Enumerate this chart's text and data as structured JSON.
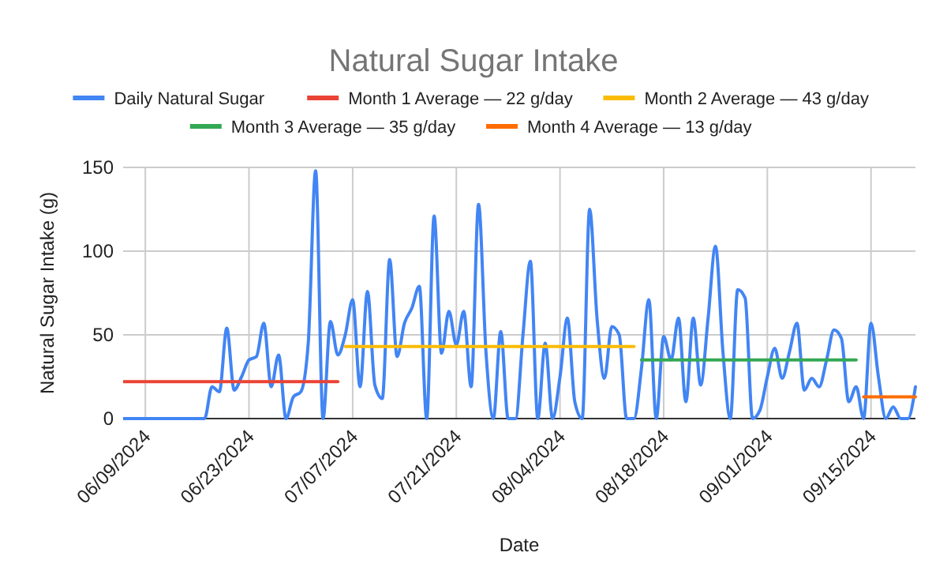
{
  "chart_data": {
    "type": "line",
    "title": "Natural Sugar Intake",
    "xlabel": "Date",
    "ylabel": "Natural Sugar Intake (g)",
    "x": [
      "2024-06-06",
      "2024-06-07",
      "2024-06-08",
      "2024-06-09",
      "2024-06-10",
      "2024-06-11",
      "2024-06-12",
      "2024-06-13",
      "2024-06-14",
      "2024-06-15",
      "2024-06-16",
      "2024-06-17",
      "2024-06-18",
      "2024-06-19",
      "2024-06-20",
      "2024-06-21",
      "2024-06-22",
      "2024-06-23",
      "2024-06-24",
      "2024-06-25",
      "2024-06-26",
      "2024-06-27",
      "2024-06-28",
      "2024-06-29",
      "2024-06-30",
      "2024-07-01",
      "2024-07-02",
      "2024-07-03",
      "2024-07-04",
      "2024-07-05",
      "2024-07-06",
      "2024-07-07",
      "2024-07-08",
      "2024-07-09",
      "2024-07-10",
      "2024-07-11",
      "2024-07-12",
      "2024-07-13",
      "2024-07-14",
      "2024-07-15",
      "2024-07-16",
      "2024-07-17",
      "2024-07-18",
      "2024-07-19",
      "2024-07-20",
      "2024-07-21",
      "2024-07-22",
      "2024-07-23",
      "2024-07-24",
      "2024-07-25",
      "2024-07-26",
      "2024-07-27",
      "2024-07-28",
      "2024-07-29",
      "2024-07-30",
      "2024-07-31",
      "2024-08-01",
      "2024-08-02",
      "2024-08-03",
      "2024-08-04",
      "2024-08-05",
      "2024-08-06",
      "2024-08-07",
      "2024-08-08",
      "2024-08-09",
      "2024-08-10",
      "2024-08-11",
      "2024-08-12",
      "2024-08-13",
      "2024-08-14",
      "2024-08-15",
      "2024-08-16",
      "2024-08-17",
      "2024-08-18",
      "2024-08-19",
      "2024-08-20",
      "2024-08-21",
      "2024-08-22",
      "2024-08-23",
      "2024-08-24",
      "2024-08-25",
      "2024-08-26",
      "2024-08-27",
      "2024-08-28",
      "2024-08-29",
      "2024-08-30",
      "2024-08-31",
      "2024-09-01",
      "2024-09-02",
      "2024-09-03",
      "2024-09-04",
      "2024-09-05",
      "2024-09-06",
      "2024-09-07",
      "2024-09-08",
      "2024-09-09",
      "2024-09-10",
      "2024-09-11",
      "2024-09-12",
      "2024-09-13",
      "2024-09-14",
      "2024-09-15",
      "2024-09-16",
      "2024-09-17",
      "2024-09-18",
      "2024-09-19",
      "2024-09-20",
      "2024-09-21"
    ],
    "series": [
      {
        "name": "Daily Natural Sugar",
        "color": "#4285f4",
        "values": [
          0,
          0,
          0,
          0,
          0,
          0,
          0,
          0,
          0,
          0,
          0,
          0,
          19,
          16,
          54,
          17,
          25,
          35,
          37,
          57,
          19,
          38,
          0,
          13,
          16,
          45,
          148,
          0,
          58,
          38,
          50,
          71,
          19,
          76,
          20,
          12,
          95,
          37,
          57,
          66,
          79,
          0,
          121,
          39,
          64,
          44,
          64,
          19,
          128,
          40,
          0,
          52,
          0,
          0,
          50,
          94,
          0,
          45,
          0,
          25,
          60,
          10,
          0,
          125,
          60,
          24,
          55,
          50,
          0,
          0,
          30,
          71,
          0,
          49,
          35,
          60,
          10,
          60,
          20,
          60,
          103,
          40,
          0,
          77,
          72,
          0,
          5,
          25,
          42,
          24,
          40,
          57,
          17,
          24,
          19,
          35,
          53,
          48,
          10,
          19,
          0,
          57,
          25,
          0,
          7,
          0,
          0,
          19
        ]
      },
      {
        "name": "Month 1 Average — 22 g/day",
        "color": "#ea4335",
        "x": [
          "2024-06-06",
          "2024-07-05"
        ],
        "values": [
          22,
          22
        ]
      },
      {
        "name": "Month 2 Average — 43 g/day",
        "color": "#fbbc04",
        "x": [
          "2024-07-06",
          "2024-08-14"
        ],
        "values": [
          43,
          43
        ]
      },
      {
        "name": "Month 3 Average — 35 g/day",
        "color": "#34a853",
        "x": [
          "2024-08-15",
          "2024-09-13"
        ],
        "values": [
          35,
          35
        ]
      },
      {
        "name": "Month 4 Average — 13 g/day",
        "color": "#ff6d01",
        "x": [
          "2024-09-14",
          "2024-09-21"
        ],
        "values": [
          13,
          13
        ]
      }
    ],
    "xlim": [
      "2024-06-06",
      "2024-09-21"
    ],
    "xticks": [
      {
        "value": "2024-06-09",
        "label": "06/09/2024"
      },
      {
        "value": "2024-06-23",
        "label": "06/23/2024"
      },
      {
        "value": "2024-07-07",
        "label": "07/07/2024"
      },
      {
        "value": "2024-07-21",
        "label": "07/21/2024"
      },
      {
        "value": "2024-08-04",
        "label": "08/04/2024"
      },
      {
        "value": "2024-08-18",
        "label": "08/18/2024"
      },
      {
        "value": "2024-09-01",
        "label": "09/01/2024"
      },
      {
        "value": "2024-09-15",
        "label": "09/15/2024"
      }
    ],
    "ylim": [
      0,
      150
    ],
    "yticks": [
      0,
      50,
      100,
      150
    ],
    "grid": true,
    "legend": "top"
  }
}
